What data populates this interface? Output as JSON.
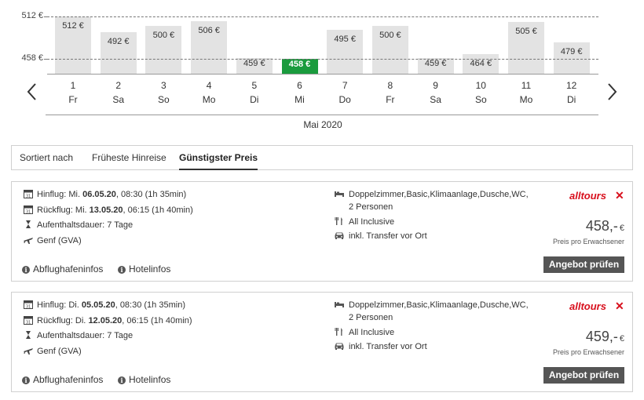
{
  "chart_data": {
    "type": "bar",
    "title": "",
    "xlabel": "Mai 2020",
    "ylabel": "",
    "ylim": [
      440,
      512
    ],
    "y_guides": [
      {
        "value": 512,
        "label": "512 €"
      },
      {
        "value": 458,
        "label": "458 €"
      }
    ],
    "categories": [
      "1",
      "2",
      "3",
      "4",
      "5",
      "6",
      "7",
      "8",
      "9",
      "10",
      "11",
      "12"
    ],
    "weekdays": [
      "Fr",
      "Sa",
      "So",
      "Mo",
      "Di",
      "Mi",
      "Do",
      "Fr",
      "Sa",
      "So",
      "Mo",
      "Di"
    ],
    "values": [
      512,
      492,
      500,
      506,
      459,
      458,
      495,
      500,
      459,
      464,
      505,
      479
    ],
    "value_labels": [
      "512 €",
      "492 €",
      "500 €",
      "506 €",
      "459 €",
      "458 €",
      "495 €",
      "500 €",
      "459 €",
      "464 €",
      "505 €",
      "479 €"
    ],
    "highlight_index": 5,
    "colors": {
      "bar": "#e3e3e3",
      "highlight": "#1a9b3d"
    },
    "grid": false
  },
  "nav": {
    "prev_icon": "chevron-left-icon",
    "next_icon": "chevron-right-icon"
  },
  "sort": {
    "label": "Sortiert nach",
    "options": [
      "Früheste Hinreise",
      "Günstigster Preis"
    ],
    "active_index": 1
  },
  "offers": [
    {
      "outbound_label": "Hinflug:",
      "outbound_day": "Mi.",
      "outbound_date": "06.05.20",
      "outbound_rest": ", 08:30 (1h 35min)",
      "return_label": "Rückflug:",
      "return_day": "Mi.",
      "return_date": "13.05.20",
      "return_rest": ", 06:15 (1h 40min)",
      "stay": "Aufenthaltsdauer: 7 Tage",
      "airport": "Genf (GVA)",
      "room": "Doppelzimmer,Basic,Klimaanlage,Dusche,WC,",
      "persons": "2 Personen",
      "board": "All Inclusive",
      "transfer": "inkl. Transfer vor Ort",
      "brand": "alltours",
      "price": "458,-",
      "currency": "€",
      "price_note": "Preis pro Erwachsener",
      "button": "Angebot prüfen",
      "airport_info": "Abflughafeninfos",
      "hotel_info": "Hotelinfos"
    },
    {
      "outbound_label": "Hinflug:",
      "outbound_day": "Di.",
      "outbound_date": "05.05.20",
      "outbound_rest": ", 08:30 (1h 35min)",
      "return_label": "Rückflug:",
      "return_day": "Di.",
      "return_date": "12.05.20",
      "return_rest": ", 06:15 (1h 40min)",
      "stay": "Aufenthaltsdauer: 7 Tage",
      "airport": "Genf (GVA)",
      "room": "Doppelzimmer,Basic,Klimaanlage,Dusche,WC,",
      "persons": "2 Personen",
      "board": "All Inclusive",
      "transfer": "inkl. Transfer vor Ort",
      "brand": "alltours",
      "price": "459,-",
      "currency": "€",
      "price_note": "Preis pro Erwachsener",
      "button": "Angebot prüfen",
      "airport_info": "Abflughafeninfos",
      "hotel_info": "Hotelinfos"
    }
  ]
}
